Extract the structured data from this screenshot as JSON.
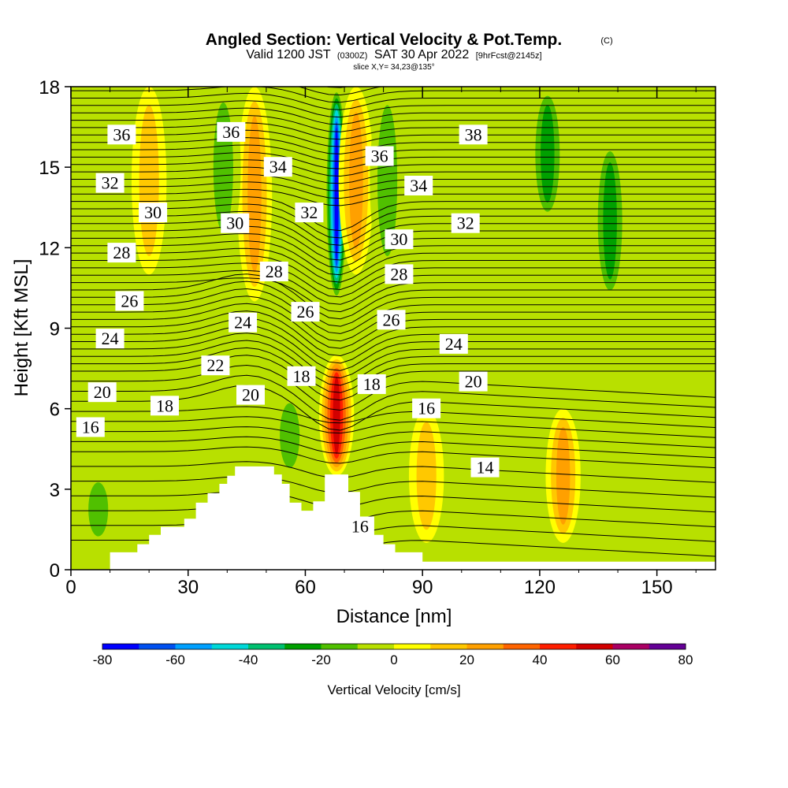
{
  "title": {
    "main": "Angled Section: Vertical Velocity & Pot.Temp.",
    "copyright": "(C)",
    "valid_prefix": "Valid 1200 JST",
    "valid_utc": "(0300Z)",
    "valid_date": "SAT 30 Apr 2022",
    "forecast": "[9hrFcst@2145z]",
    "slice": "slice X,Y= 34,23@135°"
  },
  "chart_data": {
    "type": "heatmap",
    "xlabel": "Distance [nm]",
    "ylabel": "Height [Kft MSL]",
    "xlim": [
      0,
      165
    ],
    "ylim": [
      0,
      18
    ],
    "x_ticks": [
      0,
      30,
      60,
      90,
      120,
      150
    ],
    "y_ticks": [
      0,
      3,
      6,
      9,
      12,
      15,
      18
    ],
    "colorbar": {
      "title": "Vertical Velocity [cm/s]",
      "levels": [
        -80,
        -70,
        -60,
        -50,
        -40,
        -30,
        -20,
        -10,
        0,
        10,
        20,
        30,
        40,
        50,
        60,
        70,
        80
      ],
      "tick_labels": [
        "-80",
        "-60",
        "-40",
        "-20",
        "0",
        "20",
        "40",
        "60",
        "80"
      ],
      "tick_values": [
        -80,
        -60,
        -40,
        -20,
        0,
        20,
        40,
        60,
        80
      ],
      "colors": [
        "#0000ff",
        "#0050f0",
        "#00a0ff",
        "#00d8d8",
        "#00c070",
        "#00a000",
        "#50c000",
        "#b8e000",
        "#ffff00",
        "#ffc800",
        "#ffa000",
        "#ff6400",
        "#ff1e00",
        "#d20000",
        "#aa0064",
        "#640096"
      ]
    },
    "theta_contours": [
      {
        "label": "36",
        "x": 13,
        "y": 16.2
      },
      {
        "label": "32",
        "x": 10,
        "y": 14.4
      },
      {
        "label": "30",
        "x": 21,
        "y": 13.3
      },
      {
        "label": "28",
        "x": 13,
        "y": 11.8
      },
      {
        "label": "26",
        "x": 15,
        "y": 10.0
      },
      {
        "label": "24",
        "x": 10,
        "y": 8.6
      },
      {
        "label": "20",
        "x": 8,
        "y": 6.6
      },
      {
        "label": "18",
        "x": 24,
        "y": 6.1
      },
      {
        "label": "16",
        "x": 5,
        "y": 5.3
      },
      {
        "label": "36",
        "x": 41,
        "y": 16.3
      },
      {
        "label": "34",
        "x": 53,
        "y": 15.0
      },
      {
        "label": "30",
        "x": 42,
        "y": 12.9
      },
      {
        "label": "28",
        "x": 52,
        "y": 11.1
      },
      {
        "label": "32",
        "x": 61,
        "y": 13.3
      },
      {
        "label": "24",
        "x": 44,
        "y": 9.2
      },
      {
        "label": "22",
        "x": 37,
        "y": 7.6
      },
      {
        "label": "20",
        "x": 46,
        "y": 6.5
      },
      {
        "label": "26",
        "x": 60,
        "y": 9.6
      },
      {
        "label": "18",
        "x": 59,
        "y": 7.2
      },
      {
        "label": "36",
        "x": 79,
        "y": 15.4
      },
      {
        "label": "34",
        "x": 89,
        "y": 14.3
      },
      {
        "label": "30",
        "x": 84,
        "y": 12.3
      },
      {
        "label": "28",
        "x": 84,
        "y": 11.0
      },
      {
        "label": "26",
        "x": 82,
        "y": 9.3
      },
      {
        "label": "18",
        "x": 77,
        "y": 6.9
      },
      {
        "label": "16",
        "x": 91,
        "y": 6.0
      },
      {
        "label": "24",
        "x": 98,
        "y": 8.4
      },
      {
        "label": "20",
        "x": 103,
        "y": 7.0
      },
      {
        "label": "38",
        "x": 103,
        "y": 16.2
      },
      {
        "label": "32",
        "x": 101,
        "y": 12.9
      },
      {
        "label": "14",
        "x": 106,
        "y": 3.8
      },
      {
        "label": "16",
        "x": 74,
        "y": 1.6
      }
    ],
    "vv_features": [
      {
        "kind": "downdraft",
        "x": 68,
        "y": [
          10,
          18
        ],
        "value": -80
      },
      {
        "kind": "updraft",
        "x": 68,
        "y": [
          3.5,
          8
        ],
        "value": 60
      },
      {
        "kind": "updraft",
        "x": 47,
        "y": [
          10,
          18
        ],
        "value": 30
      },
      {
        "kind": "updraft",
        "x": 20,
        "y": [
          11,
          18
        ],
        "value": 20
      },
      {
        "kind": "updraft",
        "x": 73,
        "y": [
          11,
          18
        ],
        "value": 30
      },
      {
        "kind": "updraft",
        "x": 91,
        "y": [
          1,
          6
        ],
        "value": 20
      },
      {
        "kind": "updraft",
        "x": 126,
        "y": [
          1,
          6
        ],
        "value": 30
      },
      {
        "kind": "downdraft",
        "x": 39,
        "y": [
          12,
          18
        ],
        "value": -20
      },
      {
        "kind": "downdraft",
        "x": 56,
        "y": [
          3.5,
          6.5
        ],
        "value": -20
      },
      {
        "kind": "downdraft",
        "x": 81,
        "y": [
          11,
          18
        ],
        "value": -20
      },
      {
        "kind": "downdraft",
        "x": 122,
        "y": [
          13,
          18
        ],
        "value": -30
      },
      {
        "kind": "downdraft",
        "x": 138,
        "y": [
          10,
          16
        ],
        "value": -30
      },
      {
        "kind": "downdraft",
        "x": 7,
        "y": [
          1,
          3.5
        ],
        "value": -20
      }
    ],
    "terrain": [
      [
        0,
        0
      ],
      [
        10,
        0
      ],
      [
        10,
        0.65
      ],
      [
        17,
        0.65
      ],
      [
        17,
        0.95
      ],
      [
        20,
        0.95
      ],
      [
        20,
        1.3
      ],
      [
        23,
        1.3
      ],
      [
        23,
        1.6
      ],
      [
        29,
        1.6
      ],
      [
        29,
        1.9
      ],
      [
        32,
        1.9
      ],
      [
        32,
        2.5
      ],
      [
        35,
        2.5
      ],
      [
        35,
        2.85
      ],
      [
        38,
        2.85
      ],
      [
        38,
        3.2
      ],
      [
        40,
        3.2
      ],
      [
        40,
        3.5
      ],
      [
        42,
        3.5
      ],
      [
        42,
        3.85
      ],
      [
        52,
        3.85
      ],
      [
        52,
        3.55
      ],
      [
        54,
        3.55
      ],
      [
        54,
        3.2
      ],
      [
        56,
        3.2
      ],
      [
        56,
        2.5
      ],
      [
        59,
        2.5
      ],
      [
        59,
        2.2
      ],
      [
        62,
        2.2
      ],
      [
        62,
        2.55
      ],
      [
        65,
        2.55
      ],
      [
        65,
        3.55
      ],
      [
        71,
        3.55
      ],
      [
        71,
        2.9
      ],
      [
        74,
        2.9
      ],
      [
        74,
        1.9
      ],
      [
        77,
        1.9
      ],
      [
        77,
        1.3
      ],
      [
        80,
        1.3
      ],
      [
        80,
        0.95
      ],
      [
        83,
        0.95
      ],
      [
        83,
        0.65
      ],
      [
        90,
        0.65
      ],
      [
        90,
        0.3
      ],
      [
        165,
        0.3
      ],
      [
        165,
        0
      ]
    ]
  }
}
